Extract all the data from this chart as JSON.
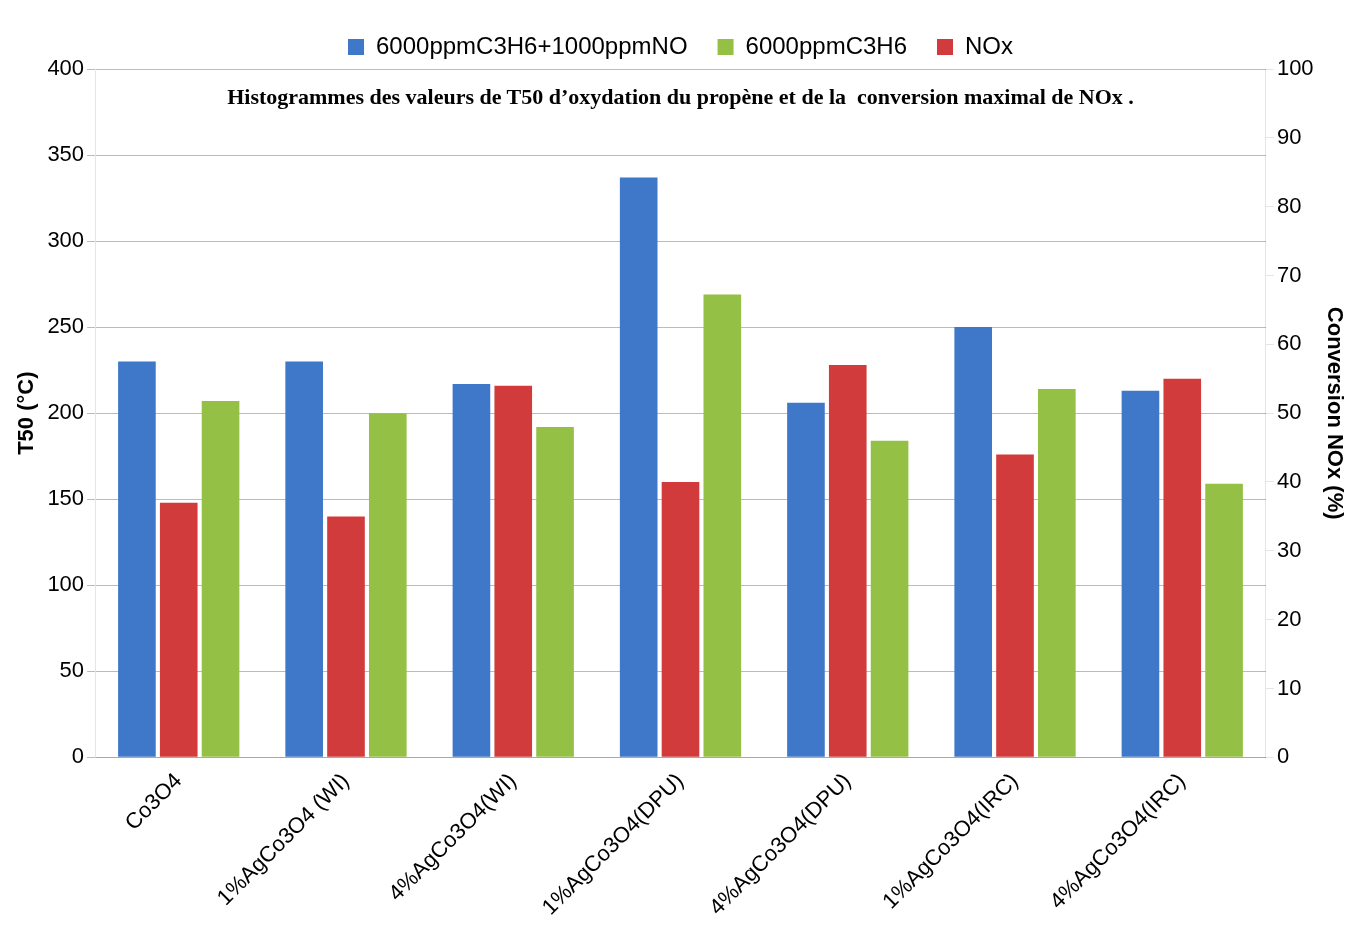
{
  "chart_data": {
    "type": "bar",
    "title": "Histogrammes des valeurs de T50 d’oxydation du propène et de la  conversion maximal de NOx .",
    "ylabel": "T50 (°C)",
    "y2label": "Conversion NOx (%)",
    "categories": [
      "Co3O4",
      "1%AgCo3O4 (WI)",
      "4%AgCo3O4(WI)",
      "1%AgCo3O4(DPU)",
      "4%AgCo3O4(DPU)",
      "1%AgCo3O4(IRC)",
      "4%AgCo3O4(IRC)"
    ],
    "series": [
      {
        "name": "6000ppmC3H6+1000ppmNO",
        "color": "#3f78c8",
        "values": [
          230,
          230,
          217,
          337,
          206,
          250,
          213
        ]
      },
      {
        "name": "NOx",
        "color": "#d23b3b",
        "axis": "y2",
        "values": [
          37,
          35,
          54,
          40,
          57,
          44,
          55
        ]
      },
      {
        "name": "6000ppmC3H6",
        "color": "#94c045",
        "values": [
          207,
          200,
          192,
          269,
          184,
          214,
          159
        ]
      }
    ],
    "ylim": [
      0,
      400
    ],
    "yticks": [
      0,
      50,
      100,
      150,
      200,
      250,
      300,
      350,
      400
    ],
    "y2lim": [
      0,
      100
    ],
    "y2ticks": [
      0,
      10,
      20,
      30,
      40,
      50,
      60,
      70,
      80,
      90,
      100
    ],
    "grid": "y",
    "legend": "top"
  }
}
